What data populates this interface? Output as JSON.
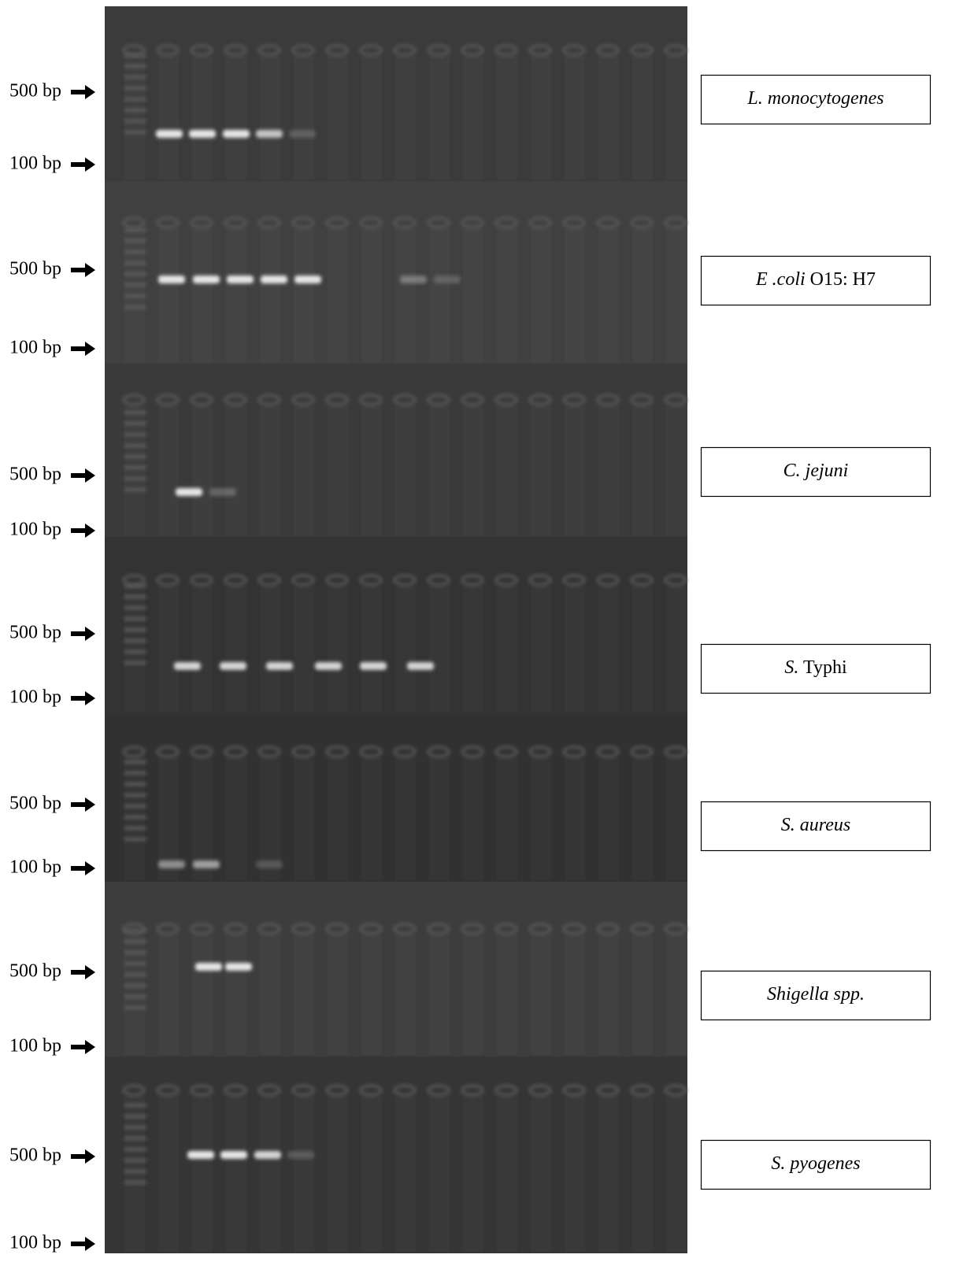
{
  "panels": [
    {
      "markers": [
        "500 bp",
        "100 bp"
      ],
      "organism": [
        {
          "italic": "L. monocytogenes"
        }
      ]
    },
    {
      "markers": [
        "500 bp",
        "100 bp"
      ],
      "organism": [
        {
          "italic": "E .coli"
        },
        {
          "roman": " O15: H7"
        }
      ]
    },
    {
      "markers": [
        "500 bp",
        "100 bp"
      ],
      "organism": [
        {
          "italic": "C. jejuni"
        }
      ]
    },
    {
      "markers": [
        "500 bp",
        "100 bp"
      ],
      "organism": [
        {
          "italic": "S."
        },
        {
          "roman": " Typhi"
        }
      ]
    },
    {
      "markers": [
        "500 bp",
        "100 bp"
      ],
      "organism": [
        {
          "italic": "S. aureus"
        }
      ]
    },
    {
      "markers": [
        "500 bp",
        "100 bp"
      ],
      "organism": [
        {
          "italic": "Shigella spp."
        }
      ]
    },
    {
      "markers": [
        "500 bp",
        "100 bp"
      ],
      "organism": [
        {
          "italic": "S. pyogenes"
        }
      ]
    }
  ]
}
